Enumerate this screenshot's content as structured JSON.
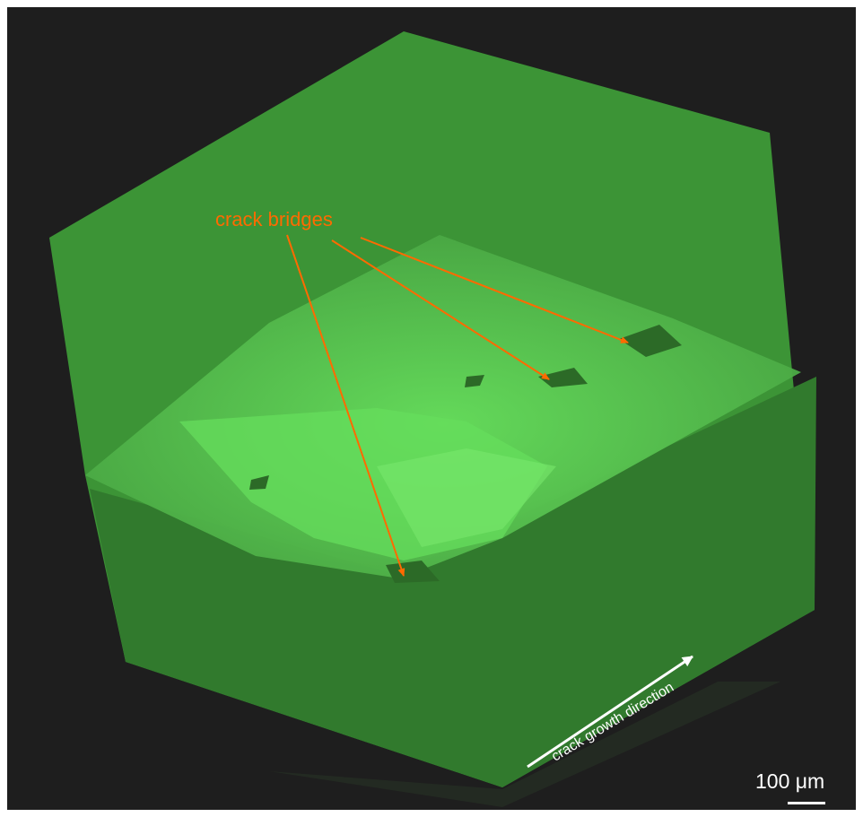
{
  "figure": {
    "annotation_label": "crack bridges",
    "direction_label": "crack growth direction",
    "scale_bar_label": "100 μm"
  },
  "colors": {
    "background": "#1e1e1e",
    "specimen_body": "#3c9436",
    "specimen_front": "#317a2d",
    "crack_surface": "#53c24a",
    "crack_highlight": "#66dd5c",
    "annotation": "#ff6a00",
    "text_white": "#ffffff"
  }
}
